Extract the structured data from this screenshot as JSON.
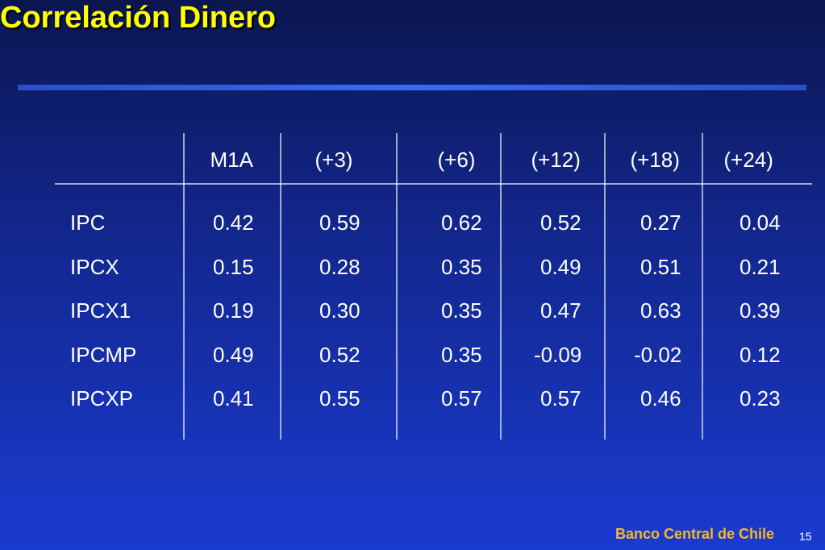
{
  "header": {
    "title": "Correlación Dinero"
  },
  "table": {
    "columns": [
      "M1A",
      "(+3)",
      "(+6)",
      "(+12)",
      "(+18)",
      "(+24)"
    ],
    "rows": [
      {
        "label": "IPC",
        "cells": [
          "0.42",
          "0.59",
          "0.62",
          "0.52",
          "0.27",
          "0.04"
        ]
      },
      {
        "label": "IPCX",
        "cells": [
          "0.15",
          "0.28",
          "0.35",
          "0.49",
          "0.51",
          "0.21"
        ]
      },
      {
        "label": "IPCX1",
        "cells": [
          "0.19",
          "0.30",
          "0.35",
          "0.47",
          "0.63",
          "0.39"
        ]
      },
      {
        "label": "IPCMP",
        "cells": [
          "0.49",
          "0.52",
          "0.35",
          "-0.09",
          "-0.02",
          "0.12"
        ]
      },
      {
        "label": "IPCXP",
        "cells": [
          "0.41",
          "0.55",
          "0.57",
          "0.57",
          "0.46",
          "0.23"
        ]
      }
    ]
  },
  "footer": {
    "organization": "Banco Central de Chile",
    "page_number": "15"
  }
}
